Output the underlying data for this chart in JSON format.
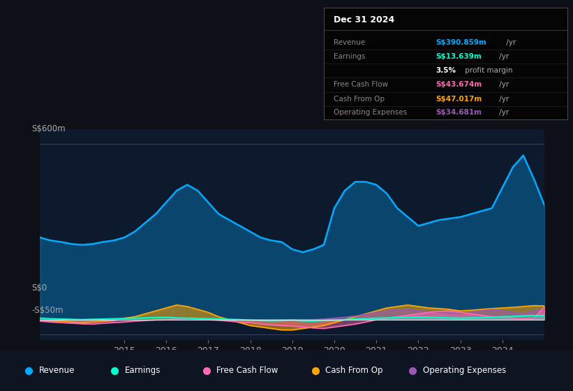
{
  "bg_color": "#0d1117",
  "plot_bg_color": "#0d1a2e",
  "legend_bg": "#0d1520",
  "title_text": "Dec 31 2024",
  "ylabel_top": "S$600m",
  "ylabel_zero": "S$0",
  "ylabel_neg": "-S$50m",
  "ylim": [
    -70,
    650
  ],
  "colors": {
    "revenue": "#00aaff",
    "earnings": "#00ffcc",
    "fcf": "#ff69b4",
    "cashfromop": "#ffa500",
    "opex": "#9b59b6"
  },
  "legend_items": [
    {
      "label": "Revenue",
      "color": "#00aaff"
    },
    {
      "label": "Earnings",
      "color": "#00ffcc"
    },
    {
      "label": "Free Cash Flow",
      "color": "#ff69b4"
    },
    {
      "label": "Cash From Op",
      "color": "#ffa500"
    },
    {
      "label": "Operating Expenses",
      "color": "#9b59b6"
    }
  ],
  "info_rows": [
    {
      "label": "Revenue",
      "value": "S$390.859m",
      "suffix": " /yr",
      "color": "#00aaff"
    },
    {
      "label": "Earnings",
      "value": "S$13.639m",
      "suffix": " /yr",
      "color": "#00ffcc"
    },
    {
      "label": "",
      "value": "3.5%",
      "suffix": " profit margin",
      "color": "#ffffff"
    },
    {
      "label": "Free Cash Flow",
      "value": "S$43.674m",
      "suffix": " /yr",
      "color": "#ff69b4"
    },
    {
      "label": "Cash From Op",
      "value": "S$47.017m",
      "suffix": " /yr",
      "color": "#ffa500"
    },
    {
      "label": "Operating Expenses",
      "value": "S$34.681m",
      "suffix": " /yr",
      "color": "#9b59b6"
    }
  ],
  "x_years": [
    2013.0,
    2013.25,
    2013.5,
    2013.75,
    2014.0,
    2014.25,
    2014.5,
    2014.75,
    2015.0,
    2015.25,
    2015.5,
    2015.75,
    2016.0,
    2016.25,
    2016.5,
    2016.75,
    2017.0,
    2017.25,
    2017.5,
    2017.75,
    2018.0,
    2018.25,
    2018.5,
    2018.75,
    2019.0,
    2019.25,
    2019.5,
    2019.75,
    2020.0,
    2020.25,
    2020.5,
    2020.75,
    2021.0,
    2021.25,
    2021.5,
    2021.75,
    2022.0,
    2022.25,
    2022.5,
    2022.75,
    2023.0,
    2023.25,
    2023.5,
    2023.75,
    2024.0,
    2024.25,
    2024.5,
    2024.75,
    2025.0
  ],
  "revenue": [
    280,
    270,
    265,
    258,
    255,
    258,
    265,
    270,
    280,
    300,
    330,
    360,
    400,
    440,
    460,
    440,
    400,
    360,
    340,
    320,
    300,
    280,
    270,
    265,
    240,
    230,
    240,
    255,
    380,
    440,
    470,
    470,
    460,
    430,
    380,
    350,
    320,
    330,
    340,
    345,
    350,
    360,
    370,
    380,
    450,
    520,
    560,
    480,
    391
  ],
  "earnings": [
    5,
    3,
    2,
    1,
    0,
    1,
    2,
    3,
    4,
    5,
    6,
    7,
    8,
    6,
    5,
    4,
    3,
    2,
    1,
    0,
    -2,
    -3,
    -4,
    -3,
    -2,
    -4,
    -5,
    -3,
    -2,
    0,
    2,
    3,
    5,
    6,
    7,
    8,
    9,
    8,
    7,
    6,
    5,
    6,
    7,
    8,
    10,
    11,
    13,
    14,
    14
  ],
  "fcf": [
    -5,
    -8,
    -10,
    -12,
    -14,
    -15,
    -12,
    -10,
    -8,
    -5,
    -3,
    -1,
    0,
    2,
    3,
    2,
    0,
    -2,
    -5,
    -8,
    -10,
    -15,
    -18,
    -20,
    -22,
    -25,
    -28,
    -30,
    -25,
    -20,
    -15,
    -8,
    0,
    5,
    10,
    15,
    20,
    25,
    28,
    30,
    25,
    20,
    15,
    10,
    8,
    5,
    3,
    5,
    43
  ],
  "cashfromop": [
    -3,
    -5,
    -5,
    -8,
    -10,
    -8,
    -5,
    -3,
    5,
    10,
    20,
    30,
    40,
    50,
    45,
    35,
    25,
    10,
    0,
    -10,
    -20,
    -25,
    -30,
    -35,
    -35,
    -30,
    -25,
    -20,
    -10,
    0,
    10,
    20,
    30,
    40,
    45,
    50,
    45,
    40,
    38,
    35,
    30,
    32,
    35,
    38,
    40,
    42,
    45,
    48,
    47
  ],
  "opex": [
    0,
    0,
    0,
    0,
    0,
    0,
    0,
    0,
    0,
    0,
    0,
    0,
    0,
    0,
    0,
    0,
    0,
    0,
    0,
    0,
    0,
    0,
    0,
    0,
    0,
    0,
    0,
    2,
    5,
    8,
    12,
    18,
    25,
    30,
    32,
    35,
    30,
    28,
    25,
    22,
    20,
    25,
    30,
    35,
    30,
    25,
    20,
    30,
    35
  ]
}
